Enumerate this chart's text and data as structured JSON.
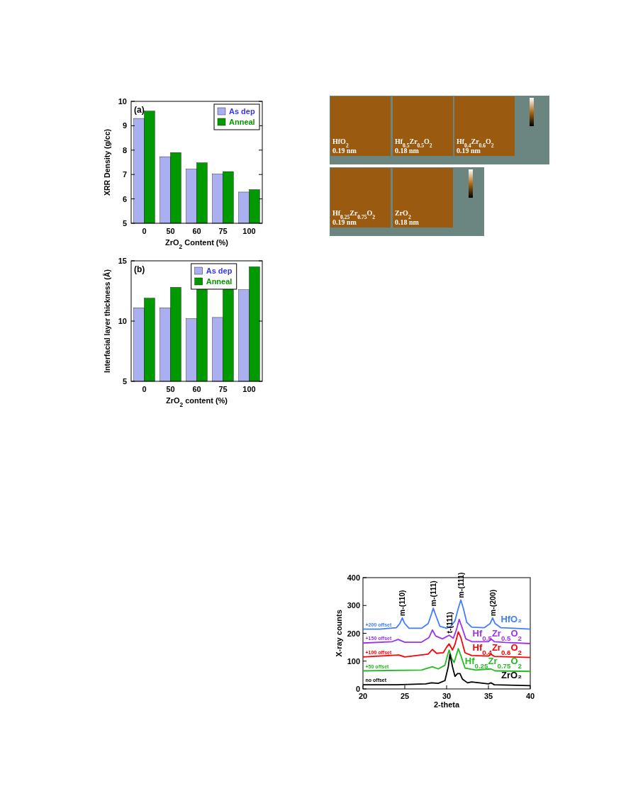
{
  "chart_data": [
    {
      "type": "bar",
      "annotations": [
        "(a)"
      ],
      "xlabel": "ZrO$_{2}$ Content (%)",
      "ylabel": "XRR Density (g/cc)",
      "categories": [
        "0",
        "50",
        "60",
        "75",
        "100"
      ],
      "series": [
        {
          "name": "As dep",
          "color": "#a9aff0",
          "values": [
            9.3,
            7.73,
            7.22,
            7.02,
            6.28
          ]
        },
        {
          "name": "Anneal",
          "color": "#009900",
          "values": [
            9.6,
            7.9,
            7.48,
            7.12,
            6.38
          ]
        }
      ],
      "ylim": [
        5,
        10
      ],
      "yticks": [
        5,
        6,
        7,
        8,
        9,
        10
      ],
      "legend": "top right"
    },
    {
      "type": "bar",
      "annotations": [
        "(b)"
      ],
      "xlabel": "ZrO$_{2}$ content (%)",
      "ylabel": "Interfacial layer thickness (Å)",
      "categories": [
        "0",
        "50",
        "60",
        "75",
        "100"
      ],
      "series": [
        {
          "name": "As dep",
          "color": "#a9aff0",
          "values": [
            11.1,
            11.1,
            10.2,
            10.3,
            12.6
          ]
        },
        {
          "name": "Anneal",
          "color": "#009900",
          "values": [
            11.9,
            12.8,
            12.7,
            12.7,
            14.5
          ]
        }
      ],
      "ylim": [
        5,
        15
      ],
      "yticks": [
        5,
        10,
        15
      ],
      "legend": "top right"
    },
    {
      "type": "other",
      "annotations": [
        "HfO$_{2}$",
        "0.19 nm",
        "Hf$_{0.5}$Zr$_{0.5}$O$_{2}$",
        "0.18 nm",
        "Hf$_{0.4}$Zr$_{0.6}$O$_{2}$",
        "0.19 nm",
        "Hf$_{0.25}$Zr$_{0.75}$O$_{2}$",
        "0.19 nm",
        "ZrO$_{2}$",
        "0.18 nm"
      ]
    },
    {
      "type": "line",
      "xlabel": "2-theta",
      "ylabel": "X-ray counts",
      "xlim": [
        20,
        40
      ],
      "xticks": [
        20,
        25,
        30,
        35,
        40
      ],
      "ylim": [
        0,
        400
      ],
      "yticks": [
        0,
        100,
        200,
        300,
        400
      ],
      "marker": "none",
      "line_style": "solid",
      "annotations": [
        {
          "text": "m-(110)",
          "x": 24.7,
          "y": 262
        },
        {
          "text": "m-(111)",
          "x": 28.4,
          "y": 297
        },
        {
          "text": "t-(111)",
          "x": 30.3,
          "y": 200
        },
        {
          "text": "m-(111)",
          "x": 31.7,
          "y": 327
        },
        {
          "text": "m-(200)",
          "x": 35.5,
          "y": 262
        },
        {
          "text": "+200 offset",
          "x": 20.3,
          "y": 225
        },
        {
          "text": "+150 offset",
          "x": 20.3,
          "y": 175
        },
        {
          "text": "+100 offset",
          "x": 20.3,
          "y": 125
        },
        {
          "text": "+50 offset",
          "x": 20.3,
          "y": 75
        },
        {
          "text": "no offset",
          "x": 20.3,
          "y": 25
        }
      ],
      "series": [
        {
          "name": "HfO₂",
          "color": "#3f7fff",
          "x": [
            20,
            22,
            24,
            24.4,
            24.7,
            25,
            25.5,
            27,
            27.8,
            28.2,
            28.4,
            28.7,
            29.2,
            30,
            30.5,
            31,
            31.4,
            31.7,
            32,
            32.4,
            33,
            34.5,
            35.2,
            35.5,
            35.8,
            36.5,
            38,
            40
          ],
          "values": [
            215,
            215,
            220,
            235,
            255,
            235,
            218,
            218,
            235,
            270,
            290,
            265,
            225,
            218,
            225,
            245,
            290,
            320,
            290,
            240,
            222,
            220,
            235,
            255,
            235,
            220,
            218,
            215
          ]
        },
        {
          "name": "Hf$_{0.5}$Zr$_{0.5}$O$_{2}$",
          "color": "#9933ee",
          "x": [
            20,
            23.5,
            24.2,
            25,
            27,
            27.9,
            28.3,
            28.7,
            29.5,
            30.3,
            30.8,
            31.2,
            31.5,
            31.8,
            32.3,
            33,
            35,
            35.3,
            35.7,
            37,
            40
          ],
          "values": [
            165,
            170,
            178,
            168,
            168,
            185,
            212,
            190,
            180,
            193,
            182,
            215,
            250,
            225,
            180,
            170,
            170,
            180,
            170,
            167,
            163
          ]
        },
        {
          "name": "Hf$_{0.4}$Zr$_{0.6}$O$_{2}$",
          "color": "#ff0000",
          "x": [
            20,
            24.3,
            25,
            27.8,
            28.3,
            28.8,
            29.6,
            30,
            30.3,
            30.7,
            31,
            31.4,
            31.7,
            32.2,
            33,
            35,
            35.3,
            35.7,
            40
          ],
          "values": [
            115,
            122,
            115,
            125,
            142,
            128,
            130,
            150,
            162,
            140,
            160,
            205,
            185,
            130,
            120,
            118,
            125,
            117,
            113
          ]
        },
        {
          "name": "Hf$_{0.25}$Zr$_{0.75}$O$_{2}$",
          "color": "#22bb22",
          "x": [
            20,
            27,
            28.3,
            29,
            29.8,
            30.1,
            30.3,
            30.6,
            30.9,
            31.2,
            31.4,
            31.7,
            32.2,
            33.5,
            35.3,
            35.8,
            40
          ],
          "values": [
            65,
            68,
            80,
            72,
            85,
            120,
            140,
            110,
            95,
            125,
            145,
            120,
            75,
            68,
            72,
            65,
            63
          ]
        },
        {
          "name": "ZrO₂",
          "color": "#000000",
          "x": [
            20,
            24,
            27.5,
            28.2,
            29,
            29.8,
            30.2,
            30.4,
            30.7,
            31,
            31.3,
            31.6,
            31.9,
            32.5,
            33,
            35,
            35.3,
            35.7,
            40
          ],
          "values": [
            15,
            15,
            18,
            22,
            20,
            30,
            80,
            125,
            80,
            45,
            55,
            55,
            35,
            22,
            25,
            18,
            22,
            15,
            12
          ]
        }
      ]
    }
  ]
}
